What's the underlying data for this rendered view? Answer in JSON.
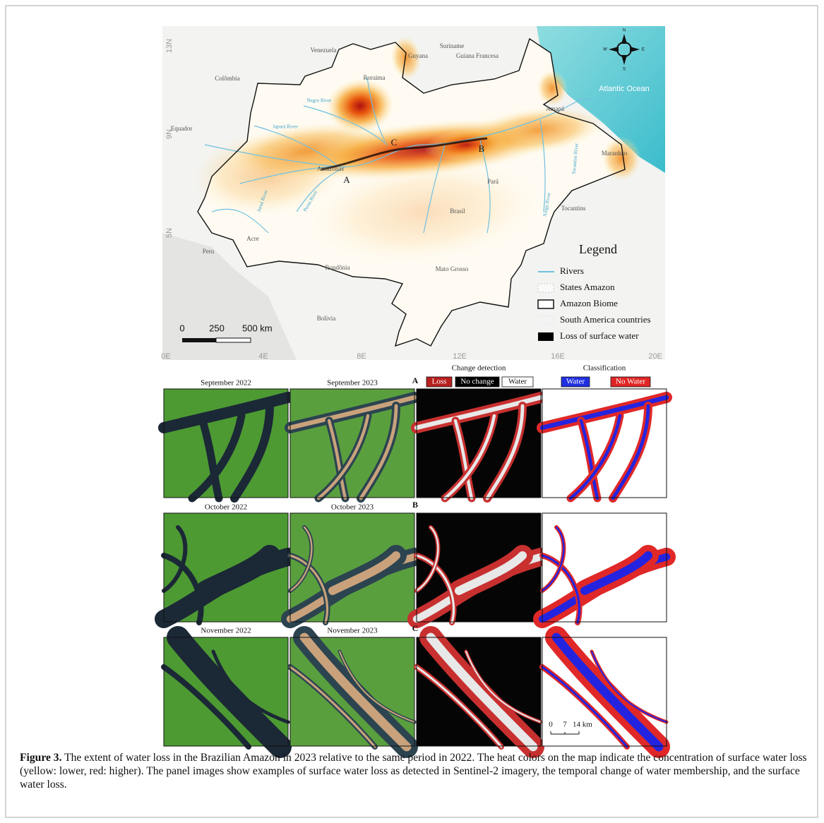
{
  "map": {
    "place_labels": [
      "Venezuela",
      "Guyana",
      "Suriname",
      "Guiana Francesa",
      "Colômbia",
      "Roraima",
      "Amapá",
      "Equador",
      "Amazonas",
      "Pará",
      "Brasil",
      "Tocantins",
      "Acre",
      "Peru",
      "Rondônia",
      "Mato Grosso",
      "Bolivia",
      "Maranhão"
    ],
    "ocean_label": "Atlantic Ocean",
    "river_labels": [
      "Negro River",
      "Japurá River",
      "Juruá River",
      "Purus River",
      "Tocantins River",
      "Xingu River"
    ],
    "sites": [
      "A",
      "B",
      "C"
    ],
    "lat_labels": [
      "13N",
      "9N",
      "5N"
    ],
    "lon_labels": [
      "0E",
      "4E",
      "8E",
      "12E",
      "16E",
      "20E"
    ],
    "scale": [
      "0",
      "250",
      "500 km"
    ],
    "compass": [
      "N",
      "E",
      "S",
      "W"
    ],
    "legend": {
      "title": "Legend",
      "items": [
        "Rivers",
        "States Amazon",
        "Amazon Biome",
        "South America countries",
        "Loss of surface water"
      ]
    }
  },
  "panels": {
    "change_header": "Change detection",
    "class_header": "Classification",
    "change_keys": [
      "Loss",
      "No change",
      "Water"
    ],
    "class_keys": [
      "Water",
      "No Water"
    ],
    "rows": [
      {
        "site": "A",
        "before": "September 2022",
        "after": "September 2023"
      },
      {
        "site": "B",
        "before": "October 2022",
        "after": "October 2023"
      },
      {
        "site": "C",
        "before": "November 2022",
        "after": "November 2023"
      }
    ],
    "scale": [
      "0",
      "7",
      "14 km"
    ]
  },
  "caption": {
    "label": "Figure 3.",
    "text": "The extent of water loss in the Brazilian Amazon in 2023 relative to the same period in 2022. The heat colors on the map indicate the concentration of surface water loss (yellow: lower, red: higher). The panel images show examples of surface water loss as detected in Sentinel-2 imagery, the temporal change of water membership, and the surface water loss."
  }
}
